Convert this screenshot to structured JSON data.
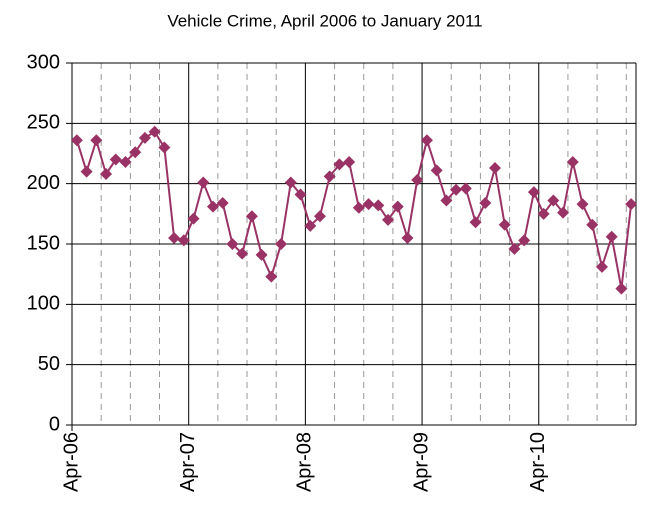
{
  "chart_data": {
    "type": "line",
    "title": "Vehicle Crime, April 2006 to January 2011",
    "categories": [
      "Apr-06",
      null,
      null,
      null,
      null,
      null,
      null,
      null,
      null,
      null,
      null,
      null,
      "Apr-07",
      null,
      null,
      null,
      null,
      null,
      null,
      null,
      null,
      null,
      null,
      null,
      "Apr-08",
      null,
      null,
      null,
      null,
      null,
      null,
      null,
      null,
      null,
      null,
      null,
      "Apr-09",
      null,
      null,
      null,
      null,
      null,
      null,
      null,
      null,
      null,
      null,
      null,
      "Apr-10",
      null,
      null,
      null,
      null,
      null,
      null,
      null,
      null,
      null
    ],
    "series": [
      {
        "name": "Vehicle Crime",
        "color": "#993366",
        "values": [
          236,
          210,
          236,
          208,
          220,
          218,
          226,
          238,
          243,
          230,
          155,
          153,
          171,
          201,
          181,
          184,
          150,
          142,
          173,
          141,
          123,
          150,
          201,
          191,
          165,
          173,
          206,
          216,
          218,
          180,
          183,
          182,
          170,
          181,
          155,
          203,
          236,
          211,
          186,
          195,
          196,
          168,
          184,
          213,
          166,
          146,
          153,
          193,
          175,
          186,
          176,
          218,
          183,
          166,
          131,
          156,
          113,
          183
        ]
      }
    ],
    "ylim": [
      0,
      300
    ],
    "yticks": [
      0,
      50,
      100,
      150,
      200,
      250,
      300
    ],
    "grid": true
  }
}
